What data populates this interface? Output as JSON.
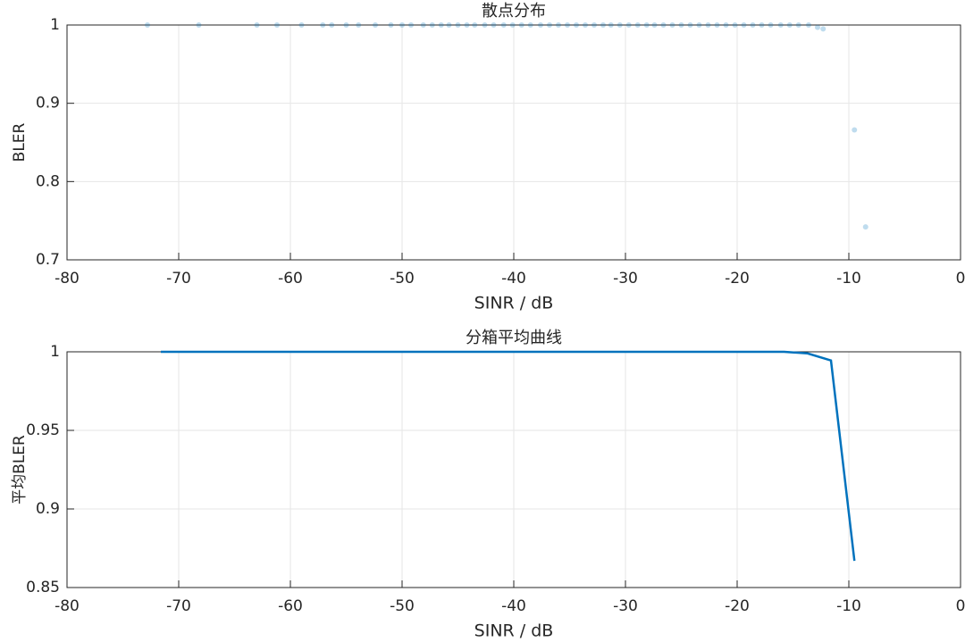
{
  "chart_data": [
    {
      "type": "scatter",
      "title": "散点分布",
      "x_label": "SINR / dB",
      "y_label": "BLER",
      "color": "#0072bd",
      "x": [
        -72.8,
        -68.2,
        -63.0,
        -61.2,
        -59.0,
        -57.1,
        -56.3,
        -55.0,
        -53.9,
        -52.4,
        -51.0,
        -50.0,
        -49.2,
        -48.1,
        -47.3,
        -46.5,
        -45.8,
        -45.0,
        -44.2,
        -43.5,
        -42.6,
        -41.8,
        -40.9,
        -40.1,
        -39.3,
        -38.5,
        -37.6,
        -36.8,
        -36.0,
        -35.2,
        -34.4,
        -33.6,
        -32.8,
        -32.0,
        -31.3,
        -30.5,
        -29.7,
        -28.9,
        -28.1,
        -27.4,
        -26.6,
        -25.8,
        -25.0,
        -24.2,
        -23.4,
        -22.6,
        -21.8,
        -21.0,
        -20.2,
        -19.4,
        -18.6,
        -17.8,
        -17.0,
        -16.1,
        -15.3,
        -14.5,
        -13.6,
        -12.8,
        -12.3,
        -9.5,
        -8.5
      ],
      "y": [
        1,
        1,
        1,
        1,
        1,
        1,
        1,
        1,
        1,
        1,
        1,
        1,
        1,
        1,
        1,
        1,
        1,
        1,
        1,
        1,
        1,
        1,
        1,
        1,
        1,
        1,
        1,
        1,
        1,
        1,
        1,
        1,
        1,
        1,
        1,
        1,
        1,
        1,
        1,
        1,
        1,
        1,
        1,
        1,
        1,
        1,
        1,
        1,
        1,
        1,
        1,
        1,
        1,
        1,
        1,
        1,
        1,
        0.997,
        0.995,
        0.866,
        0.742
      ],
      "xlim": [
        -80,
        0
      ],
      "ylim": [
        0.7,
        1
      ],
      "xticks": [
        -80,
        -70,
        -60,
        -50,
        -40,
        -30,
        -20,
        -10,
        0
      ],
      "yticks": [
        0.7,
        0.8,
        0.9,
        1
      ],
      "grid": true
    },
    {
      "type": "line",
      "title": "分箱平均曲线",
      "x_label": "SINR / dB",
      "y_label": "平均BLER",
      "color": "#0072bd",
      "x": [
        -71.6,
        -69.5,
        -67.5,
        -65.4,
        -63.3,
        -61.3,
        -59.2,
        -57.1,
        -55.0,
        -53.0,
        -50.9,
        -48.8,
        -46.8,
        -44.7,
        -42.6,
        -40.6,
        -38.5,
        -36.4,
        -34.3,
        -32.3,
        -30.2,
        -28.1,
        -26.1,
        -24.0,
        -21.9,
        -19.9,
        -17.8,
        -15.8,
        -13.7,
        -11.6,
        -9.5
      ],
      "values": [
        1,
        1,
        1,
        1,
        1,
        1,
        1,
        1,
        1,
        1,
        1,
        1,
        1,
        1,
        1,
        1,
        1,
        1,
        1,
        1,
        1,
        1,
        1,
        1,
        1,
        1,
        1,
        1,
        0.999,
        0.9945,
        0.867
      ],
      "xlim": [
        -80,
        0
      ],
      "ylim": [
        0.85,
        1
      ],
      "xticks": [
        -80,
        -70,
        -60,
        -50,
        -40,
        -30,
        -20,
        -10,
        0
      ],
      "yticks": [
        0.85,
        0.9,
        0.95,
        1
      ],
      "grid": true
    }
  ]
}
